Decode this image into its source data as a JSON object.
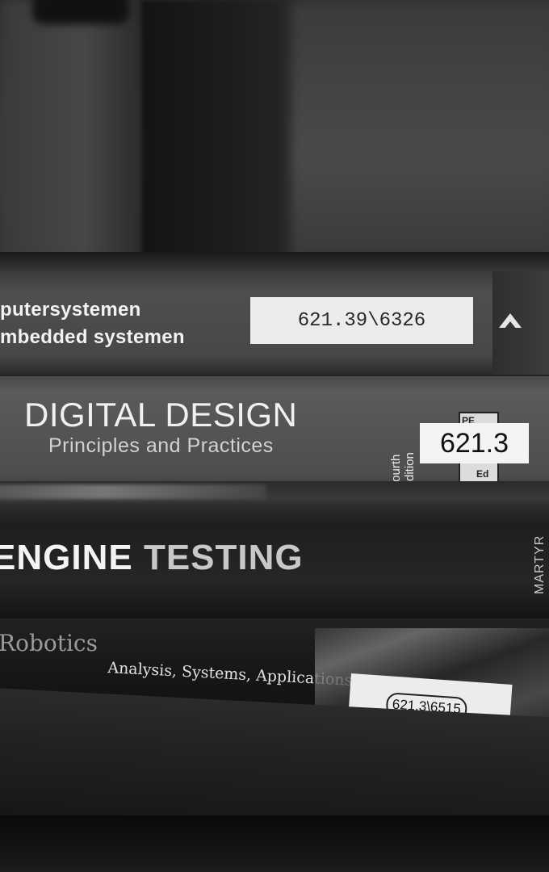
{
  "books": [
    {
      "spine_lines": [
        "putersystemen",
        "mbedded systemen"
      ],
      "call_number": "621.39\\6326"
    },
    {
      "title": "DIGITAL DESIGN",
      "subtitle": "Principles and Practices",
      "edition_line1": "Fourth",
      "edition_line2": "Edition",
      "publisher_fragment1": "PE",
      "publisher_fragment2": "Ed",
      "call_number": "621.3"
    },
    {
      "title_part1": "ENGINE",
      "title_part2": "TESTING",
      "author": "MARTYR"
    },
    {
      "title": "Robotics",
      "subtitle": "Analysis, Systems, Applications",
      "call_number": "621.3\\6515"
    }
  ]
}
